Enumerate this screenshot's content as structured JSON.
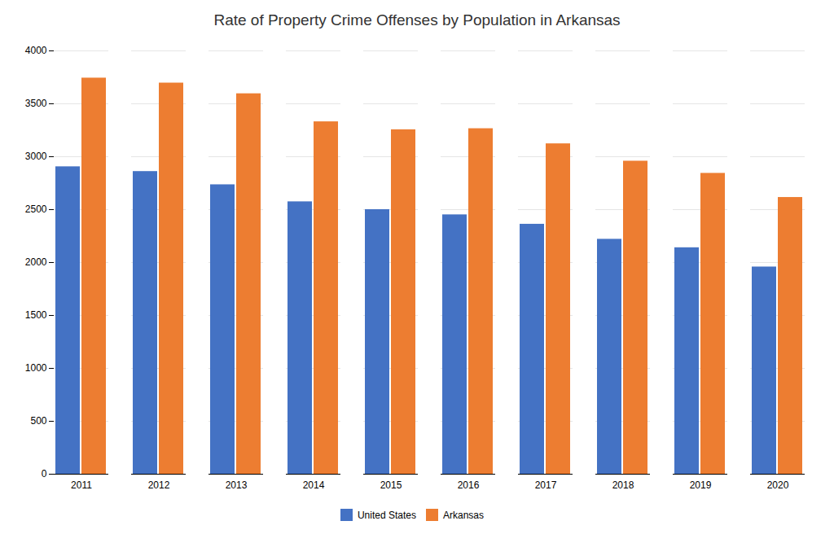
{
  "chart_data": {
    "type": "bar",
    "title": "Rate of Property Crime Offenses by Population in Arkansas",
    "categories": [
      "2011",
      "2012",
      "2013",
      "2014",
      "2015",
      "2016",
      "2017",
      "2018",
      "2019",
      "2020"
    ],
    "series": [
      {
        "name": "United States",
        "color": "#4472C4",
        "values": [
          2905,
          2860,
          2735,
          2574,
          2500,
          2451,
          2362,
          2220,
          2140,
          1958
        ]
      },
      {
        "name": "Arkansas",
        "color": "#ED7D31",
        "values": [
          3743,
          3696,
          3595,
          3330,
          3255,
          3265,
          3122,
          2958,
          2843,
          2615
        ]
      }
    ],
    "ylim": [
      0,
      4000
    ],
    "yticks": [
      0,
      500,
      1000,
      1500,
      2000,
      2500,
      3000,
      3500,
      4000
    ],
    "grid": true,
    "legend": "bottom"
  }
}
